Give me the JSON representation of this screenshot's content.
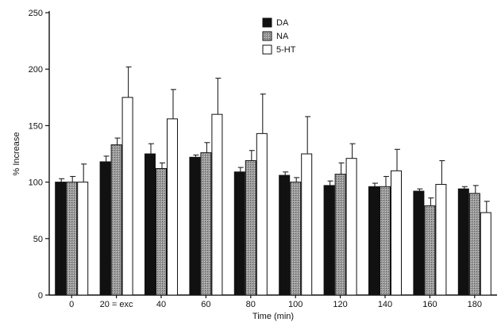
{
  "chart_data": {
    "type": "bar",
    "title": "",
    "xlabel": "Time (min)",
    "ylabel": "% Increase",
    "ylim": [
      0,
      250
    ],
    "yticks": [
      0,
      50,
      100,
      150,
      200,
      250
    ],
    "categories": [
      "0",
      "20 = exc",
      "40",
      "60",
      "80",
      "100",
      "120",
      "140",
      "160",
      "180"
    ],
    "legend_position": "top-center",
    "series": [
      {
        "name": "DA",
        "color": "#111111",
        "values": [
          100,
          118,
          125,
          122,
          109,
          106,
          97,
          96,
          92,
          94
        ],
        "errors": [
          3,
          5,
          9,
          2,
          4,
          3,
          4,
          3,
          2,
          2
        ]
      },
      {
        "name": "NA",
        "color": "#9a9a9a",
        "values": [
          100,
          133,
          112,
          126,
          119,
          100,
          107,
          96,
          79,
          90
        ],
        "errors": [
          5,
          6,
          5,
          9,
          9,
          4,
          10,
          9,
          7,
          7
        ]
      },
      {
        "name": "5-HT",
        "color": "#ffffff",
        "values": [
          100,
          175,
          156,
          160,
          143,
          125,
          121,
          110,
          98,
          73
        ],
        "errors": [
          16,
          27,
          26,
          32,
          35,
          33,
          13,
          19,
          21,
          10
        ]
      }
    ]
  }
}
